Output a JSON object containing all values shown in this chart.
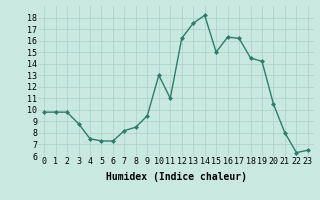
{
  "x": [
    0,
    1,
    2,
    3,
    4,
    5,
    6,
    7,
    8,
    9,
    10,
    11,
    12,
    13,
    14,
    15,
    16,
    17,
    18,
    19,
    20,
    21,
    22,
    23
  ],
  "y": [
    9.8,
    9.8,
    9.8,
    8.8,
    7.5,
    7.3,
    7.3,
    8.2,
    8.5,
    9.5,
    13.0,
    11.0,
    16.2,
    17.5,
    18.2,
    15.0,
    16.3,
    16.2,
    14.5,
    14.2,
    10.5,
    8.0,
    6.3,
    6.5
  ],
  "line_color": "#2d7d6e",
  "marker_color": "#2d7d6e",
  "bg_color": "#c8e8e0",
  "grid_color": "#b0d4cc",
  "xlabel": "Humidex (Indice chaleur)",
  "ylim": [
    6,
    19
  ],
  "xlim": [
    -0.5,
    23.5
  ],
  "yticks": [
    6,
    7,
    8,
    9,
    10,
    11,
    12,
    13,
    14,
    15,
    16,
    17,
    18
  ],
  "xticks": [
    0,
    1,
    2,
    3,
    4,
    5,
    6,
    7,
    8,
    9,
    10,
    11,
    12,
    13,
    14,
    15,
    16,
    17,
    18,
    19,
    20,
    21,
    22,
    23
  ],
  "xlabel_fontsize": 7,
  "tick_fontsize": 6
}
